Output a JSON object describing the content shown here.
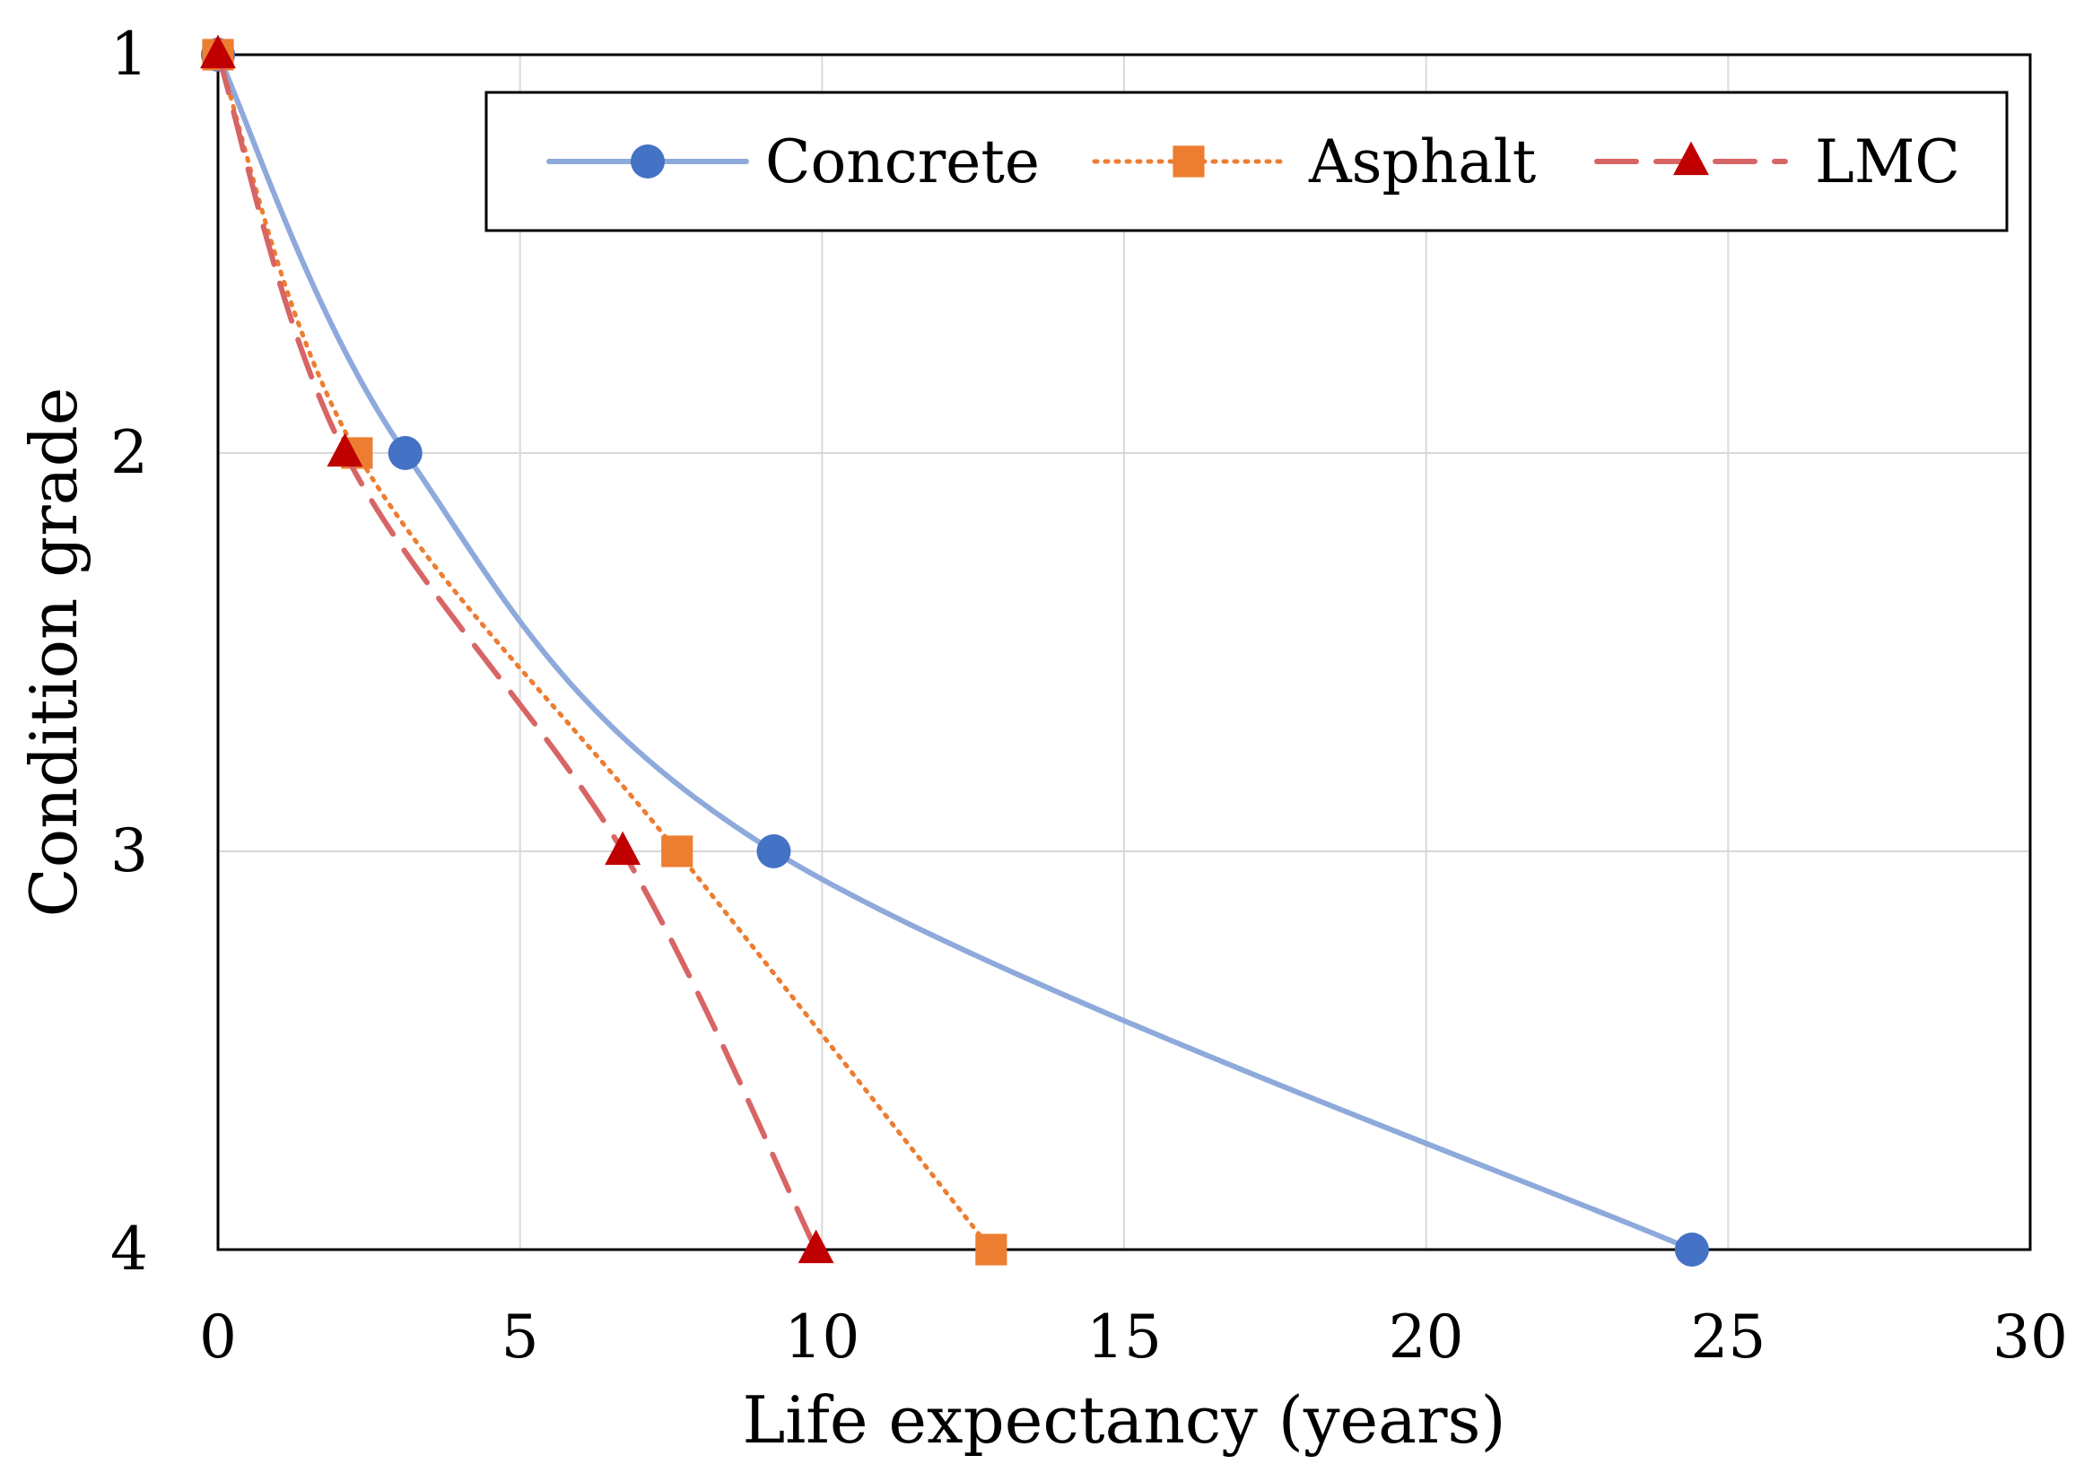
{
  "chart_data": {
    "type": "line",
    "title": "",
    "xlabel": "Life expectancy (years)",
    "ylabel": "Condition grade",
    "xlim": [
      0,
      30
    ],
    "ylim": [
      1,
      4
    ],
    "y_inverted": true,
    "x_ticks": [
      0,
      5,
      10,
      15,
      20,
      25,
      30
    ],
    "y_ticks": [
      1,
      2,
      3,
      4
    ],
    "grid": true,
    "legend_position": "top",
    "series": [
      {
        "name": "Concrete",
        "color": "#4472C4",
        "line_color": "#8EA9DB",
        "marker": "circle",
        "line_style": "solid",
        "smooth": true,
        "x": [
          0,
          3.1,
          9.2,
          24.4
        ],
        "y": [
          1,
          2,
          3,
          4
        ]
      },
      {
        "name": "Asphalt",
        "color": "#ED7D31",
        "line_color": "#ED7D31",
        "marker": "square",
        "line_style": "dotted",
        "smooth": true,
        "x": [
          0,
          2.3,
          7.6,
          12.8
        ],
        "y": [
          1,
          2,
          3,
          4
        ]
      },
      {
        "name": "LMC",
        "color": "#C00000",
        "line_color": "#D86565",
        "marker": "triangle",
        "line_style": "dashed",
        "smooth": true,
        "x": [
          0,
          2.1,
          6.7,
          9.9
        ],
        "y": [
          1,
          2,
          3,
          4
        ]
      }
    ]
  }
}
